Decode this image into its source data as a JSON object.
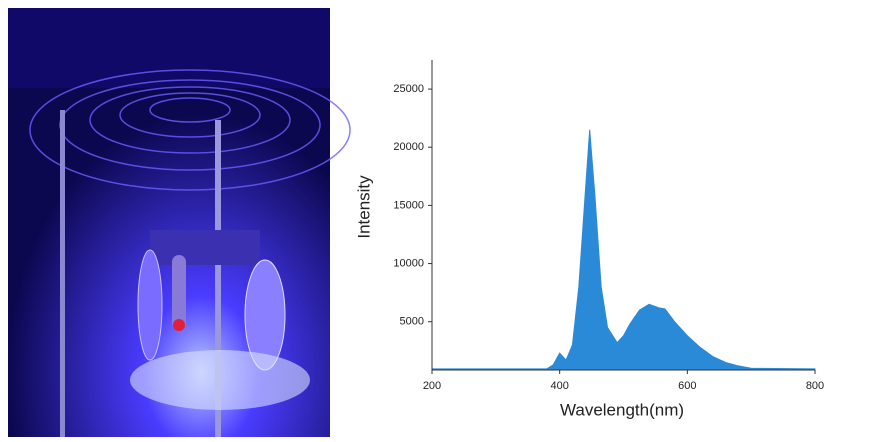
{
  "chart_data": {
    "type": "area",
    "xlabel": "Wavelength(nm)",
    "ylabel": "Intensity",
    "x": [
      200,
      380,
      390,
      400,
      410,
      420,
      430,
      440,
      447,
      455,
      465,
      475,
      490,
      500,
      510,
      525,
      540,
      555,
      565,
      580,
      600,
      620,
      640,
      660,
      680,
      700,
      800
    ],
    "values": [
      950,
      950,
      1300,
      2300,
      1700,
      3000,
      8000,
      16000,
      21500,
      16000,
      8000,
      4500,
      3200,
      3800,
      4800,
      6000,
      6500,
      6200,
      6100,
      5000,
      3800,
      2800,
      2000,
      1500,
      1200,
      1000,
      950
    ],
    "color": "#2a8ad8",
    "xlim": [
      200,
      800
    ],
    "xticks": [
      200,
      400,
      600,
      800
    ],
    "ylim": [
      850,
      27500
    ],
    "yticks": [
      5000,
      10000,
      15000,
      20000,
      25000
    ]
  }
}
